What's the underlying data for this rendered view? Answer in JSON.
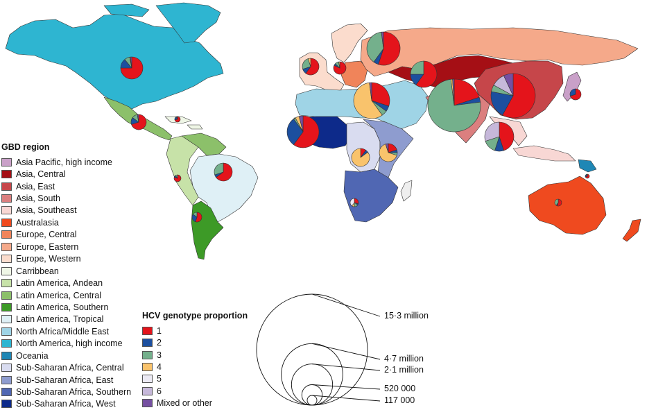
{
  "gbd_legend": {
    "title": "GBD region",
    "items": [
      {
        "label": "Asia Pacific, high income",
        "color": "#c9a0c8"
      },
      {
        "label": "Asia, Central",
        "color": "#a50f15"
      },
      {
        "label": "Asia, East",
        "color": "#c6464a"
      },
      {
        "label": "Asia, South",
        "color": "#db7f7f"
      },
      {
        "label": "Asia, Southeast",
        "color": "#f8d7d4"
      },
      {
        "label": "Australasia",
        "color": "#ef4a1f"
      },
      {
        "label": "Europe, Central",
        "color": "#f0845a"
      },
      {
        "label": "Europe, Eastern",
        "color": "#f5a98a"
      },
      {
        "label": "Europe, Western",
        "color": "#fbdccd"
      },
      {
        "label": "Carribbean",
        "color": "#eff6e6"
      },
      {
        "label": "Latin America, Andean",
        "color": "#c7e2a8"
      },
      {
        "label": "Latin America, Central",
        "color": "#8cc06a"
      },
      {
        "label": "Latin America, Southern",
        "color": "#3d9a27"
      },
      {
        "label": "Latin America, Tropical",
        "color": "#dff0f6"
      },
      {
        "label": "North Africa/Middle East",
        "color": "#9fd4e6"
      },
      {
        "label": "North America, high income",
        "color": "#2eb5d1"
      },
      {
        "label": "Oceania",
        "color": "#1f87b5"
      },
      {
        "label": "Sub-Saharan Africa, Central",
        "color": "#d9dcf0"
      },
      {
        "label": "Sub-Saharan Africa, East",
        "color": "#8e9ccf"
      },
      {
        "label": "Sub-Saharan Africa, Southern",
        "color": "#5067b3"
      },
      {
        "label": "Sub-Saharan Africa, West",
        "color": "#0d2a8a"
      }
    ]
  },
  "genotype_legend": {
    "title": "HCV genotype proportion",
    "items": [
      {
        "label": "1",
        "color": "#e4141b"
      },
      {
        "label": "2",
        "color": "#1c4f9f"
      },
      {
        "label": "3",
        "color": "#74b08c"
      },
      {
        "label": "4",
        "color": "#f9c36c"
      },
      {
        "label": "5",
        "color": "#eceaf4"
      },
      {
        "label": "6",
        "color": "#c6b8da"
      },
      {
        "label": "Mixed or other",
        "color": "#7650a2"
      }
    ]
  },
  "size_legend": {
    "items": [
      {
        "label": "15·3 million",
        "value_millions": 15.3
      },
      {
        "label": "4·7 million",
        "value_millions": 4.7
      },
      {
        "label": "2·1 million",
        "value_millions": 2.1
      },
      {
        "label": "520 000",
        "value_millions": 0.52
      },
      {
        "label": "117 000",
        "value_millions": 0.117
      }
    ]
  },
  "region_pies": [
    {
      "region": "North America, high income",
      "proportions": [
        0.75,
        0.14,
        0.08,
        0.01,
        0,
        0,
        0.02
      ]
    },
    {
      "region": "Latin America, Central",
      "proportions": [
        0.7,
        0.15,
        0.12,
        0,
        0,
        0,
        0.03
      ]
    },
    {
      "region": "Carribbean",
      "proportions": [
        0.72,
        0.2,
        0.05,
        0,
        0,
        0,
        0.03
      ]
    },
    {
      "region": "Latin America, Andean",
      "proportions": [
        0.8,
        0.1,
        0.1,
        0,
        0,
        0,
        0
      ]
    },
    {
      "region": "Latin America, Tropical",
      "proportions": [
        0.65,
        0.05,
        0.3,
        0,
        0,
        0,
        0
      ]
    },
    {
      "region": "Latin America, Southern",
      "proportions": [
        0.55,
        0.3,
        0.15,
        0,
        0,
        0,
        0
      ]
    },
    {
      "region": "Europe, Western",
      "proportions": [
        0.6,
        0.1,
        0.25,
        0.05,
        0,
        0,
        0
      ]
    },
    {
      "region": "Europe, Central",
      "proportions": [
        0.82,
        0.05,
        0.1,
        0.03,
        0,
        0,
        0
      ]
    },
    {
      "region": "Europe, Eastern",
      "proportions": [
        0.55,
        0.05,
        0.38,
        0,
        0,
        0,
        0.02
      ]
    },
    {
      "region": "North Africa/Middle East",
      "proportions": [
        0.3,
        0.05,
        0.05,
        0.58,
        0,
        0,
        0.02
      ]
    },
    {
      "region": "Asia, Central",
      "proportions": [
        0.6,
        0.15,
        0.25,
        0,
        0,
        0,
        0
      ]
    },
    {
      "region": "Asia, South",
      "proportions": [
        0.2,
        0.03,
        0.75,
        0.01,
        0,
        0,
        0.01
      ]
    },
    {
      "region": "Asia, East",
      "proportions": [
        0.58,
        0.2,
        0.05,
        0,
        0,
        0.1,
        0.07
      ]
    },
    {
      "region": "Asia Pacific, high income",
      "proportions": [
        0.7,
        0.3,
        0,
        0,
        0,
        0,
        0
      ]
    },
    {
      "region": "Asia, Southeast",
      "proportions": [
        0.45,
        0.1,
        0.15,
        0,
        0,
        0.3,
        0
      ]
    },
    {
      "region": "Sub-Saharan Africa, West",
      "proportions": [
        0.6,
        0.3,
        0.02,
        0.04,
        0,
        0,
        0.04
      ]
    },
    {
      "region": "Sub-Saharan Africa, Central",
      "proportions": [
        0.1,
        0.05,
        0,
        0.85,
        0,
        0,
        0
      ]
    },
    {
      "region": "Sub-Saharan Africa, East",
      "proportions": [
        0.2,
        0.05,
        0.05,
        0.65,
        0,
        0,
        0.05
      ]
    },
    {
      "region": "Sub-Saharan Africa, Southern",
      "proportions": [
        0.3,
        0.05,
        0.15,
        0.1,
        0.4,
        0,
        0
      ]
    },
    {
      "region": "Oceania",
      "proportions": [
        0.7,
        0.2,
        0.1,
        0,
        0,
        0,
        0
      ]
    },
    {
      "region": "Australasia",
      "proportions": [
        0.55,
        0.05,
        0.4,
        0,
        0,
        0,
        0
      ]
    }
  ]
}
